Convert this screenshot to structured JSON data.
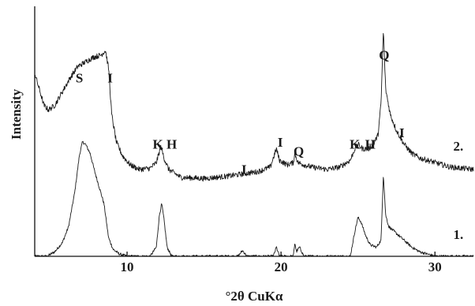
{
  "chart_data": {
    "type": "line",
    "xlabel": "°2θ CuKα",
    "ylabel": "Intensity",
    "xlim": [
      4,
      32.5
    ],
    "x_ticks": [
      {
        "value": 10,
        "label": "10"
      },
      {
        "value": 20,
        "label": "20"
      },
      {
        "value": 30,
        "label": "30"
      }
    ],
    "yaxis_ticks": false,
    "grid": false,
    "colors": {
      "line": "#1a1a1a",
      "text": "#1a1a1a",
      "axis": "#111111"
    },
    "series": [
      {
        "name": "1.",
        "baseline": 0.0,
        "noise": 0.006,
        "points": [
          [
            4.0,
            0.0
          ],
          [
            4.8,
            0.0
          ],
          [
            5.3,
            0.02
          ],
          [
            5.8,
            0.06
          ],
          [
            6.2,
            0.13
          ],
          [
            6.6,
            0.28
          ],
          [
            6.9,
            0.44
          ],
          [
            7.1,
            0.5
          ],
          [
            7.3,
            0.49
          ],
          [
            7.6,
            0.45
          ],
          [
            7.9,
            0.37
          ],
          [
            8.2,
            0.3
          ],
          [
            8.5,
            0.23
          ],
          [
            8.8,
            0.08
          ],
          [
            9.1,
            0.03
          ],
          [
            9.5,
            0.01
          ],
          [
            10.0,
            0.0
          ],
          [
            11.5,
            0.0
          ],
          [
            11.9,
            0.04
          ],
          [
            12.1,
            0.18
          ],
          [
            12.25,
            0.23
          ],
          [
            12.4,
            0.16
          ],
          [
            12.6,
            0.04
          ],
          [
            12.9,
            0.0
          ],
          [
            17.2,
            0.0
          ],
          [
            17.5,
            0.025
          ],
          [
            17.8,
            0.0
          ],
          [
            19.5,
            0.0
          ],
          [
            19.7,
            0.04
          ],
          [
            19.9,
            0.0
          ],
          [
            20.8,
            0.0
          ],
          [
            20.9,
            0.06
          ],
          [
            21.0,
            0.02
          ],
          [
            21.2,
            0.04
          ],
          [
            21.5,
            0.0
          ],
          [
            24.5,
            0.0
          ],
          [
            24.8,
            0.11
          ],
          [
            25.0,
            0.17
          ],
          [
            25.2,
            0.15
          ],
          [
            25.5,
            0.09
          ],
          [
            25.8,
            0.05
          ],
          [
            26.2,
            0.04
          ],
          [
            26.5,
            0.07
          ],
          [
            26.65,
            0.36
          ],
          [
            26.8,
            0.18
          ],
          [
            27.0,
            0.13
          ],
          [
            27.5,
            0.1
          ],
          [
            28.0,
            0.07
          ],
          [
            28.5,
            0.04
          ],
          [
            29.0,
            0.02
          ],
          [
            29.5,
            0.01
          ],
          [
            30.0,
            0.0
          ],
          [
            32.5,
            0.0
          ]
        ]
      },
      {
        "name": "2.",
        "baseline": 0.2,
        "noise": 0.012,
        "points": [
          [
            4.0,
            0.6
          ],
          [
            4.3,
            0.53
          ],
          [
            4.6,
            0.46
          ],
          [
            4.9,
            0.44
          ],
          [
            5.3,
            0.46
          ],
          [
            5.8,
            0.52
          ],
          [
            6.3,
            0.58
          ],
          [
            6.8,
            0.63
          ],
          [
            7.3,
            0.65
          ],
          [
            7.8,
            0.67
          ],
          [
            8.3,
            0.68
          ],
          [
            8.6,
            0.7
          ],
          [
            8.8,
            0.62
          ],
          [
            9.0,
            0.42
          ],
          [
            9.3,
            0.3
          ],
          [
            9.7,
            0.24
          ],
          [
            10.2,
            0.2
          ],
          [
            10.8,
            0.18
          ],
          [
            11.5,
            0.185
          ],
          [
            11.9,
            0.21
          ],
          [
            12.2,
            0.28
          ],
          [
            12.4,
            0.23
          ],
          [
            12.7,
            0.18
          ],
          [
            13.5,
            0.145
          ],
          [
            15.0,
            0.14
          ],
          [
            16.5,
            0.15
          ],
          [
            17.5,
            0.16
          ],
          [
            18.5,
            0.17
          ],
          [
            19.3,
            0.19
          ],
          [
            19.7,
            0.27
          ],
          [
            19.9,
            0.22
          ],
          [
            20.4,
            0.2
          ],
          [
            20.8,
            0.21
          ],
          [
            20.9,
            0.25
          ],
          [
            21.1,
            0.21
          ],
          [
            21.5,
            0.2
          ],
          [
            22.0,
            0.19
          ],
          [
            23.0,
            0.18
          ],
          [
            23.8,
            0.19
          ],
          [
            24.5,
            0.22
          ],
          [
            24.8,
            0.27
          ],
          [
            25.0,
            0.29
          ],
          [
            25.3,
            0.27
          ],
          [
            25.7,
            0.27
          ],
          [
            26.0,
            0.29
          ],
          [
            26.3,
            0.33
          ],
          [
            26.5,
            0.47
          ],
          [
            26.65,
            0.79
          ],
          [
            26.8,
            0.53
          ],
          [
            27.1,
            0.42
          ],
          [
            27.5,
            0.35
          ],
          [
            28.0,
            0.29
          ],
          [
            28.5,
            0.25
          ],
          [
            29.0,
            0.23
          ],
          [
            29.5,
            0.22
          ],
          [
            30.0,
            0.21
          ],
          [
            30.5,
            0.2
          ],
          [
            31.0,
            0.19
          ],
          [
            32.5,
            0.18
          ]
        ]
      }
    ],
    "series_labels": [
      {
        "text": "1.",
        "series": "1.",
        "x": 31.6
      },
      {
        "text": "2.",
        "series": "2.",
        "x": 31.6
      }
    ],
    "annotations": [
      {
        "text": "S",
        "x": 6.9,
        "y": 0.76
      },
      {
        "text": "I",
        "x": 8.9,
        "y": 0.76
      },
      {
        "text": "K",
        "x": 12.0,
        "y": 0.47
      },
      {
        "text": "H",
        "x": 12.9,
        "y": 0.47
      },
      {
        "text": "I",
        "x": 17.6,
        "y": 0.36
      },
      {
        "text": "I",
        "x": 19.95,
        "y": 0.48
      },
      {
        "text": "Q",
        "x": 21.15,
        "y": 0.44
      },
      {
        "text": "K",
        "x": 24.8,
        "y": 0.47
      },
      {
        "text": "H",
        "x": 25.8,
        "y": 0.47
      },
      {
        "text": "Q",
        "x": 26.7,
        "y": 0.86
      },
      {
        "text": "I",
        "x": 27.85,
        "y": 0.52
      }
    ]
  }
}
